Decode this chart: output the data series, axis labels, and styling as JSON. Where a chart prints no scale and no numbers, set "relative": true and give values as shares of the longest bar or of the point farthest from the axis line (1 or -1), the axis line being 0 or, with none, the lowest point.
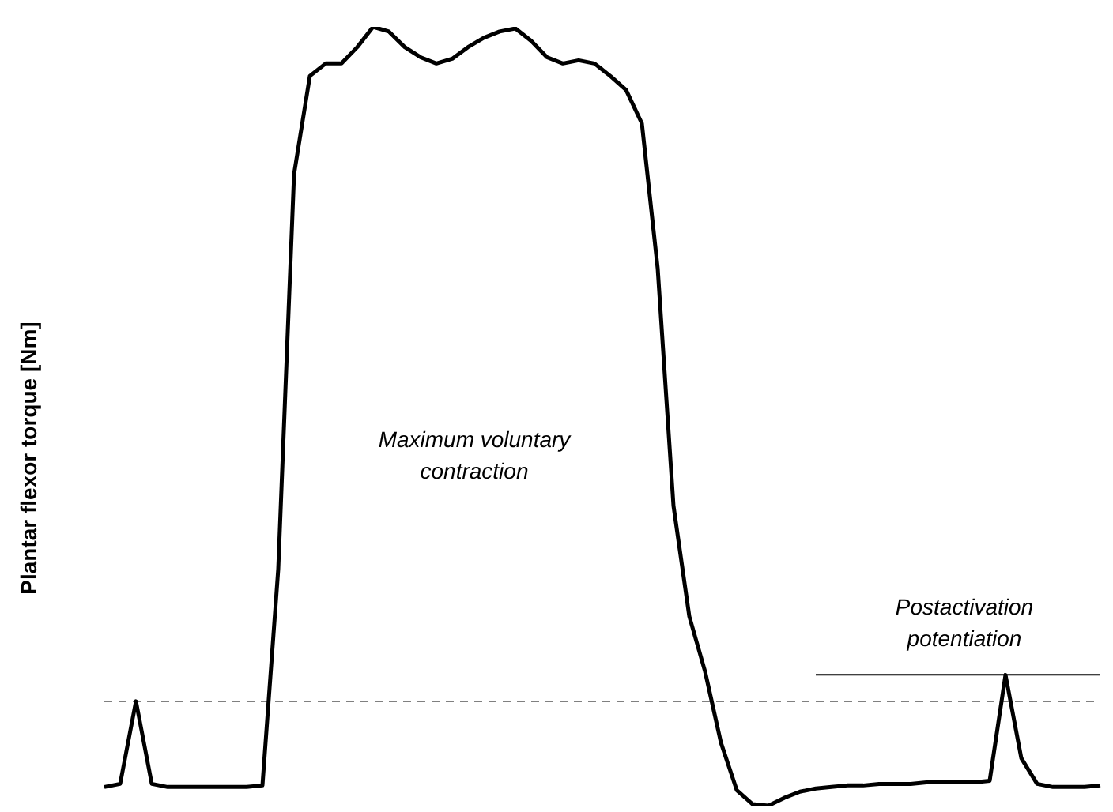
{
  "chart_data": {
    "type": "line",
    "relative": true,
    "ylabel": "Plantar flexor torque [Nm]",
    "tick_labels": false,
    "marker": "none",
    "annotations": [
      "Maximum voluntary contraction",
      "Postactivation potentiation"
    ],
    "categories": [
      null,
      null,
      null,
      null,
      null,
      null,
      null,
      null,
      null,
      null,
      null,
      null,
      null,
      null,
      null,
      null,
      null,
      null,
      null,
      null,
      null,
      null,
      null,
      null,
      null,
      null,
      null,
      null,
      null,
      null,
      null,
      null,
      null,
      null,
      null,
      null,
      null,
      null,
      null,
      null,
      null,
      null,
      null,
      null,
      null,
      null,
      null,
      null,
      null,
      null,
      null,
      null,
      null,
      null,
      null,
      null,
      null,
      null,
      null,
      null,
      null,
      null,
      null,
      null
    ],
    "series": [
      {
        "color": "#000000",
        "values": [
          0.024,
          0.028,
          0.134,
          0.028,
          0.024,
          0.024,
          0.024,
          0.024,
          0.024,
          0.024,
          0.026,
          0.304,
          0.811,
          0.937,
          0.953,
          0.953,
          0.974,
          1,
          0.994,
          0.974,
          0.961,
          0.953,
          0.959,
          0.974,
          0.986,
          0.994,
          0.998,
          0.982,
          0.961,
          0.953,
          0.957,
          0.953,
          0.937,
          0.919,
          0.876,
          0.69,
          0.385,
          0.243,
          0.172,
          0.081,
          0.02,
          0.002,
          0,
          0.01,
          0.018,
          0.022,
          0.024,
          0.026,
          0.026,
          0.028,
          0.028,
          0.028,
          0.03,
          0.03,
          0.03,
          0.03,
          0.032,
          0.168,
          0.061,
          0.028,
          0.024,
          0.024,
          0.024,
          0.026
        ]
      },
      {
        "color": "#000000",
        "values": [
          null,
          null,
          null,
          null,
          null,
          null,
          null,
          null,
          null,
          null,
          null,
          null,
          null,
          null,
          null,
          null,
          null,
          null,
          null,
          null,
          null,
          null,
          null,
          null,
          null,
          null,
          null,
          null,
          null,
          null,
          null,
          null,
          null,
          null,
          null,
          null,
          null,
          null,
          null,
          null,
          null,
          null,
          null,
          null,
          null,
          0.168,
          0.168,
          0.168,
          0.168,
          0.168,
          0.168,
          0.168,
          0.168,
          0.168,
          0.168,
          0.168,
          0.168,
          0.168,
          0.168,
          0.168,
          0.168,
          0.168,
          0.168,
          0.168
        ]
      }
    ],
    "ref_lines": [
      {
        "axis": "y",
        "value": 0.134,
        "color": "#808080",
        "line_style": "dashed"
      }
    ]
  }
}
